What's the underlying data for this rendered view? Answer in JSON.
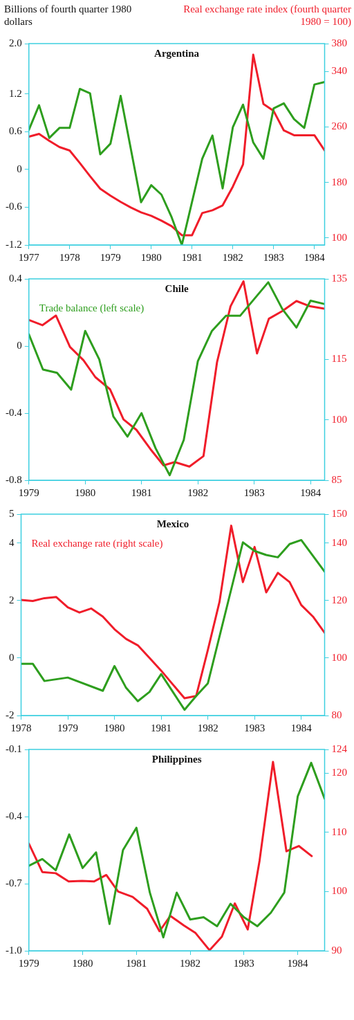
{
  "chart_data": [
    {
      "type": "line",
      "title": "Argentina",
      "ylabel": "Billions of fourth quarter 1980 dollars",
      "y2label": "Real exchange rate index (fourth quarter 1980 = 100)",
      "xlim": [
        1977,
        1984.25
      ],
      "xticks": [
        1977,
        1978,
        1979,
        1980,
        1981,
        1982,
        1983,
        1984
      ],
      "ylim": [
        -1.2,
        2.0
      ],
      "yticks": [
        -1.2,
        -0.6,
        0,
        0.6,
        1.2,
        {
          "value": 2,
          "label": "2.0"
        }
      ],
      "y2lim": [
        90,
        380
      ],
      "y2ticks": [
        100,
        180,
        260,
        340,
        380
      ],
      "series": [
        {
          "color": "#2e9e1e",
          "x": [
            1977,
            1977.25,
            1977.5,
            1977.75,
            1978,
            1978.25,
            1978.5,
            1978.75,
            1979,
            1979.25,
            1979.75,
            1980,
            1980.25,
            1980.5,
            1980.75,
            1981.25,
            1981.5,
            1981.75,
            1982,
            1982.25,
            1982.5,
            1982.75,
            1983,
            1983.25,
            1983.5,
            1983.75,
            1984,
            1984.25
          ],
          "values": [
            0.63,
            1.02,
            0.5,
            0.66,
            0.66,
            1.28,
            1.21,
            0.24,
            0.41,
            1.17,
            -0.52,
            -0.25,
            -0.4,
            -0.76,
            -1.2,
            0.17,
            0.54,
            -0.3,
            0.67,
            1.03,
            0.43,
            0.17,
            0.97,
            1.05,
            0.8,
            0.66,
            1.35,
            1.39
          ]
        },
        {
          "color": "#f01d2a",
          "axis": "y2",
          "x": [
            1977,
            1977.25,
            1977.5,
            1977.75,
            1978,
            1978.25,
            1978.5,
            1978.75,
            1979,
            1979.25,
            1979.5,
            1979.75,
            1980,
            1980.25,
            1980.5,
            1980.75,
            1981,
            1981.25,
            1981.5,
            1981.75,
            1982,
            1982.25,
            1982.5,
            1982.75,
            1983,
            1983.25,
            1983.5,
            1983.75,
            1984,
            1984.25
          ],
          "values": [
            246,
            250,
            240,
            231,
            226,
            208,
            189,
            171,
            161,
            152,
            144,
            137,
            132,
            125,
            117,
            104,
            104,
            136,
            140,
            147,
            174,
            206,
            364,
            293,
            283,
            255,
            248,
            248,
            248,
            226
          ]
        }
      ]
    },
    {
      "type": "line",
      "title": "Chile",
      "xlim": [
        1979,
        1984.25
      ],
      "xticks": [
        1979,
        1980,
        1981,
        1982,
        1983,
        1984
      ],
      "ylim": [
        -0.8,
        0.4
      ],
      "yticks": [
        -0.8,
        -0.4,
        0,
        0.4
      ],
      "y2lim": [
        85,
        135
      ],
      "y2ticks": [
        85,
        100,
        115,
        135
      ],
      "series": [
        {
          "name": "Trade balance (left scale)",
          "color": "#2e9e1e",
          "x": [
            1979,
            1979.25,
            1979.5,
            1979.75,
            1980,
            1980.25,
            1980.5,
            1980.75,
            1981,
            1981.25,
            1981.5,
            1981.75,
            1982,
            1982.25,
            1982.5,
            1982.75,
            1983,
            1983.25,
            1983.5,
            1983.75,
            1984,
            1984.25
          ],
          "values": [
            0.07,
            -0.14,
            -0.16,
            -0.26,
            0.09,
            -0.08,
            -0.42,
            -0.54,
            -0.4,
            -0.61,
            -0.77,
            -0.56,
            -0.09,
            0.09,
            0.18,
            0.18,
            0.28,
            0.38,
            0.22,
            0.11,
            0.27,
            0.25
          ]
        },
        {
          "color": "#f01d2a",
          "axis": "y2",
          "x": [
            1979,
            1979.24,
            1979.48,
            1979.73,
            1979.97,
            1980.18,
            1980.44,
            1980.68,
            1980.91,
            1981.16,
            1981.39,
            1981.59,
            1981.85,
            1982.1,
            1982.34,
            1982.58,
            1982.81,
            1983.05,
            1983.26,
            1983.5,
            1983.75,
            1983.99,
            1984.24
          ],
          "values": [
            124.8,
            123.5,
            125.9,
            118.1,
            114.8,
            110.6,
            107.6,
            100.1,
            97.5,
            92.7,
            88.7,
            89.5,
            88.4,
            91,
            114.3,
            128.2,
            134.4,
            116.5,
            125.1,
            127,
            129.5,
            128.2,
            127.6
          ]
        }
      ]
    },
    {
      "type": "line",
      "title": "Mexico",
      "xlim": [
        1978,
        1984.5
      ],
      "xticks": [
        1978,
        1979,
        1980,
        1981,
        1982,
        1983,
        1984
      ],
      "ylim": [
        -2,
        5
      ],
      "yticks": [
        -2,
        0,
        2,
        4,
        5
      ],
      "y2lim": [
        80,
        150
      ],
      "y2ticks": [
        80,
        100,
        120,
        140,
        150
      ],
      "series": [
        {
          "color": "#2e9e1e",
          "x": [
            1978,
            1978.25,
            1978.5,
            1978.75,
            1979,
            1979.75,
            1980,
            1980.25,
            1980.5,
            1980.75,
            1981,
            1981.5,
            1981.75,
            1982,
            1982.75,
            1983,
            1983.25,
            1983.5,
            1983.75,
            1984,
            1984.5
          ],
          "values": [
            -0.2,
            -0.2,
            -0.8,
            -0.74,
            -0.68,
            -1.14,
            -0.28,
            -1.04,
            -1.5,
            -1.18,
            -0.56,
            -1.8,
            -1.32,
            -0.88,
            4.02,
            3.72,
            3.58,
            3.5,
            3.96,
            4.1,
            3.0
          ]
        },
        {
          "name": "Real exchange rate (right scale)",
          "color": "#f01d2a",
          "axis": "y2",
          "x": [
            1978,
            1978.25,
            1978.5,
            1978.75,
            1979,
            1979.25,
            1979.5,
            1979.75,
            1980,
            1980.25,
            1980.5,
            1980.75,
            1981,
            1981.25,
            1981.5,
            1981.75,
            1982,
            1982.25,
            1982.5,
            1982.75,
            1983,
            1983.25,
            1983.5,
            1983.75,
            1984,
            1984.25,
            1984.5
          ],
          "values": [
            120.2,
            119.8,
            120.8,
            121.2,
            117.6,
            115.8,
            117.2,
            114.4,
            110,
            106.6,
            104.4,
            100,
            95.6,
            90.8,
            86,
            86.8,
            102.8,
            119.6,
            146,
            126.4,
            138.6,
            122.8,
            129.6,
            126.4,
            118.4,
            114.4,
            108.8
          ]
        }
      ]
    },
    {
      "type": "line",
      "title": "Philippines",
      "xlim": [
        1979,
        1984.5
      ],
      "xticks": [
        1979,
        1980,
        1981,
        1982,
        1983,
        1984
      ],
      "ylim": [
        -1.0,
        -0.1
      ],
      "yticks": [
        {
          "value": -1,
          "label": "-1.0"
        },
        -0.7,
        -0.4,
        -0.1
      ],
      "y2lim": [
        90,
        124
      ],
      "y2ticks": [
        90,
        100,
        110,
        120,
        124
      ],
      "series": [
        {
          "color": "#2e9e1e",
          "x": [
            1979,
            1979.25,
            1979.5,
            1979.75,
            1980,
            1980.25,
            1980.5,
            1980.75,
            1981,
            1981.25,
            1981.5,
            1981.75,
            1982,
            1982.25,
            1982.5,
            1982.75,
            1983,
            1983.25,
            1983.5,
            1983.75,
            1984,
            1984.25,
            1984.5
          ],
          "values": [
            -0.62,
            -0.59,
            -0.64,
            -0.48,
            -0.63,
            -0.56,
            -0.88,
            -0.55,
            -0.45,
            -0.74,
            -0.94,
            -0.74,
            -0.86,
            -0.85,
            -0.89,
            -0.79,
            -0.85,
            -0.89,
            -0.83,
            -0.74,
            -0.31,
            -0.16,
            -0.32
          ]
        },
        {
          "color": "#f01d2a",
          "axis": "y2",
          "x": [
            1979,
            1979.25,
            1979.5,
            1979.74,
            1979.99,
            1980.21,
            1980.44,
            1980.66,
            1980.93,
            1981.2,
            1981.43,
            1981.63,
            1981.88,
            1982.1,
            1982.36,
            1982.59,
            1982.83,
            1983.07,
            1983.29,
            1983.54,
            1983.79,
            1984.02,
            1984.26
          ],
          "values": [
            108.1,
            103.3,
            103.1,
            101.7,
            101.8,
            101.7,
            102.8,
            100,
            99.1,
            97.1,
            93.3,
            95.9,
            94.3,
            93,
            90.1,
            92.4,
            98,
            93.6,
            105.2,
            121.9,
            106.8,
            107.7,
            106
          ]
        }
      ]
    }
  ]
}
